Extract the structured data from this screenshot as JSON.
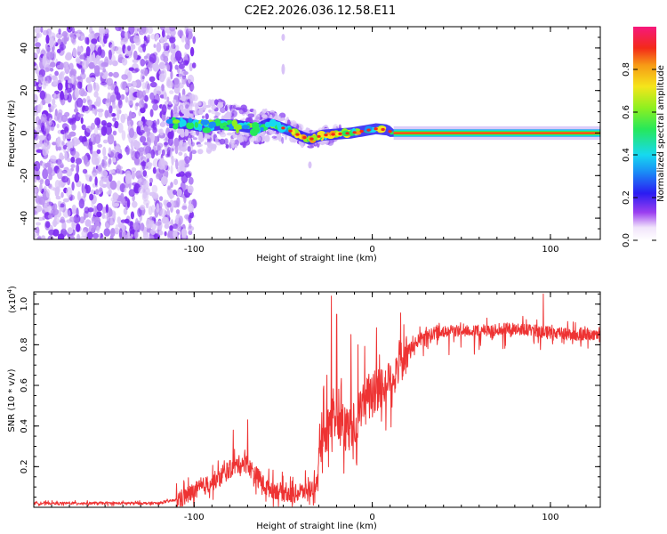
{
  "title": "C2E2.2026.036.12.58.E11",
  "colors": {
    "spec_density": "#7d2bf0",
    "spec_haze": "#d9c3f7",
    "snr_line": "#ee3333",
    "axis": "#000000"
  },
  "chart_data": [
    {
      "type": "heatmap",
      "name": "spectrogram",
      "title": "C2E2.2026.036.12.58.E11",
      "xlabel": "Height of straight line (km)",
      "ylabel": "Frequency (Hz)",
      "xlim": [
        -190,
        128
      ],
      "ylim": [
        -50,
        50
      ],
      "x_ticks": [
        -100,
        0,
        100
      ],
      "x_tick_labels": [
        "-100",
        "0",
        "100"
      ],
      "y_ticks": [
        -40,
        -20,
        0,
        20,
        40
      ],
      "y_tick_labels": [
        "-40",
        "-20",
        "0",
        "20",
        "40"
      ],
      "colorbar": {
        "label": "Normalized spectral amplitude",
        "range": [
          0,
          1
        ],
        "ticks": [
          0.0,
          0.2,
          0.4,
          0.6,
          0.8
        ],
        "tick_labels": [
          "0.0",
          "0.2",
          "0.4",
          "0.6",
          "0.8"
        ]
      },
      "regions": [
        {
          "name": "broadband noise",
          "x_range": [
            -190,
            -104
          ],
          "freq_range": [
            -50,
            50
          ],
          "amplitude": 0.05
        },
        {
          "name": "emerging tone",
          "x_range": [
            -104,
            -40
          ],
          "freq_center": 3,
          "amplitude": 0.4
        },
        {
          "name": "stable tone",
          "x_range": [
            12,
            128
          ],
          "freq_center": 0,
          "amplitude": 0.85
        }
      ],
      "tone_track": [
        {
          "x": -115,
          "f": 5
        },
        {
          "x": -105,
          "f": 4.5
        },
        {
          "x": -95,
          "f": 3
        },
        {
          "x": -85,
          "f": 4
        },
        {
          "x": -75,
          "f": 3.5
        },
        {
          "x": -65,
          "f": 2
        },
        {
          "x": -58,
          "f": 4.5
        },
        {
          "x": -52,
          "f": 3
        },
        {
          "x": -46,
          "f": 1
        },
        {
          "x": -40,
          "f": -1.5
        },
        {
          "x": -35,
          "f": -3
        },
        {
          "x": -28,
          "f": -1
        },
        {
          "x": -20,
          "f": -0.5
        },
        {
          "x": -12,
          "f": 0
        },
        {
          "x": -5,
          "f": 1
        },
        {
          "x": 2,
          "f": 2
        },
        {
          "x": 8,
          "f": 1.5
        },
        {
          "x": 12,
          "f": 0
        },
        {
          "x": 128,
          "f": 0
        }
      ]
    },
    {
      "type": "line",
      "name": "snr",
      "xlabel": "Height of straight line (km)",
      "ylabel": "SNR (10 * v/v)",
      "y_multiplier_label": "(x10",
      "y_multiplier_exponent": "4",
      "y_multiplier_close": ")",
      "xlim": [
        -190,
        128
      ],
      "ylim": [
        0,
        1.06
      ],
      "x_ticks": [
        -100,
        0,
        100
      ],
      "x_tick_labels": [
        "-100",
        "0",
        "100"
      ],
      "y_ticks": [
        0.2,
        0.4,
        0.6,
        0.8,
        1.0
      ],
      "y_tick_labels": [
        "0.2",
        "0.4",
        "0.6",
        "0.8",
        "1.0"
      ],
      "series": [
        {
          "name": "SNR",
          "envelope": [
            {
              "x": -190,
              "y": 0.02
            },
            {
              "x": -120,
              "y": 0.02
            },
            {
              "x": -108,
              "y": 0.04
            },
            {
              "x": -95,
              "y": 0.1
            },
            {
              "x": -85,
              "y": 0.15
            },
            {
              "x": -78,
              "y": 0.2
            },
            {
              "x": -72,
              "y": 0.22
            },
            {
              "x": -66,
              "y": 0.17
            },
            {
              "x": -60,
              "y": 0.1
            },
            {
              "x": -52,
              "y": 0.08
            },
            {
              "x": -46,
              "y": 0.06
            },
            {
              "x": -38,
              "y": 0.08
            },
            {
              "x": -32,
              "y": 0.1
            },
            {
              "x": -27,
              "y": 0.32
            },
            {
              "x": -22,
              "y": 0.45
            },
            {
              "x": -15,
              "y": 0.38
            },
            {
              "x": -10,
              "y": 0.4
            },
            {
              "x": -5,
              "y": 0.5
            },
            {
              "x": 0,
              "y": 0.55
            },
            {
              "x": 5,
              "y": 0.58
            },
            {
              "x": 10,
              "y": 0.62
            },
            {
              "x": 18,
              "y": 0.75
            },
            {
              "x": 28,
              "y": 0.84
            },
            {
              "x": 40,
              "y": 0.87
            },
            {
              "x": 60,
              "y": 0.87
            },
            {
              "x": 80,
              "y": 0.88
            },
            {
              "x": 100,
              "y": 0.86
            },
            {
              "x": 128,
              "y": 0.84
            }
          ],
          "spikes": [
            {
              "x": -23,
              "y": 1.04
            },
            {
              "x": -20,
              "y": 0.95
            },
            {
              "x": -12,
              "y": 0.85
            },
            {
              "x": -8,
              "y": 0.8
            },
            {
              "x": 4,
              "y": 0.75
            },
            {
              "x": 96,
              "y": 1.05
            },
            {
              "x": -70,
              "y": 0.43
            },
            {
              "x": -78,
              "y": 0.38
            }
          ]
        }
      ]
    }
  ]
}
